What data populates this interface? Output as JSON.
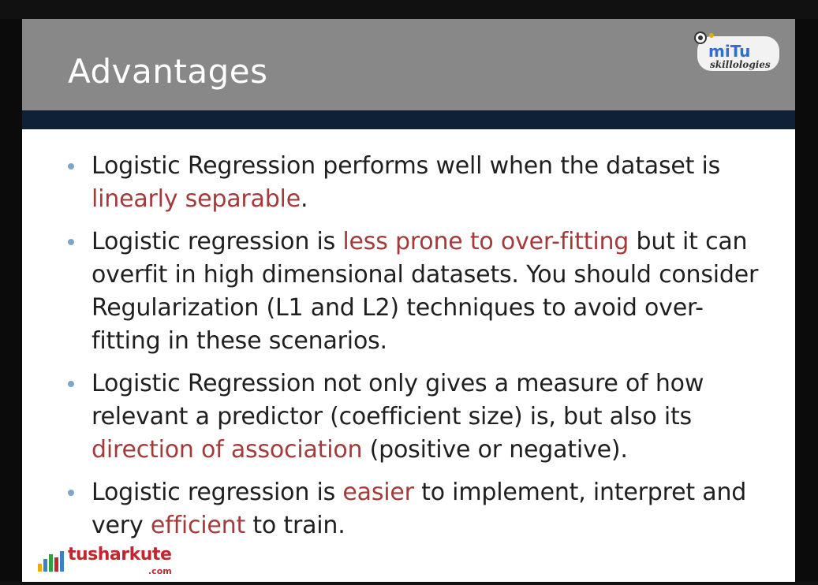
{
  "slide": {
    "title": "Advantages",
    "brand_logo": {
      "name": "miTu",
      "tagline": "skillologies"
    },
    "bullets": [
      {
        "parts": [
          {
            "text": "Logistic Regression performs well when the dataset is ",
            "highlight": false
          },
          {
            "text": "linearly separable",
            "highlight": true
          },
          {
            "text": ".",
            "highlight": false
          }
        ]
      },
      {
        "parts": [
          {
            "text": "Logistic regression is ",
            "highlight": false
          },
          {
            "text": "less prone to over-fitting",
            "highlight": true
          },
          {
            "text": " but it can overfit in high dimensional datasets. You should consider Regularization (L1 and L2) techniques to avoid over-fitting in these scenarios.",
            "highlight": false
          }
        ]
      },
      {
        "parts": [
          {
            "text": "Logistic Regression not only gives a measure of how relevant a predictor (coefficient size) is, but also its ",
            "highlight": false
          },
          {
            "text": "direction of association",
            "highlight": true
          },
          {
            "text": " (positive or negative).",
            "highlight": false
          }
        ]
      },
      {
        "parts": [
          {
            "text": "Logistic regression is ",
            "highlight": false
          },
          {
            "text": "easier",
            "highlight": true
          },
          {
            "text": " to implement, interpret and very ",
            "highlight": false
          },
          {
            "text": "efficient",
            "highlight": true
          },
          {
            "text": " to train.",
            "highlight": false
          }
        ]
      }
    ],
    "footer_logo": {
      "main": "tusharkute",
      "sub": ".com"
    }
  },
  "colors": {
    "header_bg": "#888888",
    "header_stripe": "#0f2235",
    "highlight": "#a43a3a",
    "bullet": "#7ea6c9",
    "text": "#1f1f1f",
    "footer_brand": "#c1272d"
  },
  "icons": {
    "brand": "mitu-logo-icon",
    "footer": "bar-chart-icon"
  }
}
